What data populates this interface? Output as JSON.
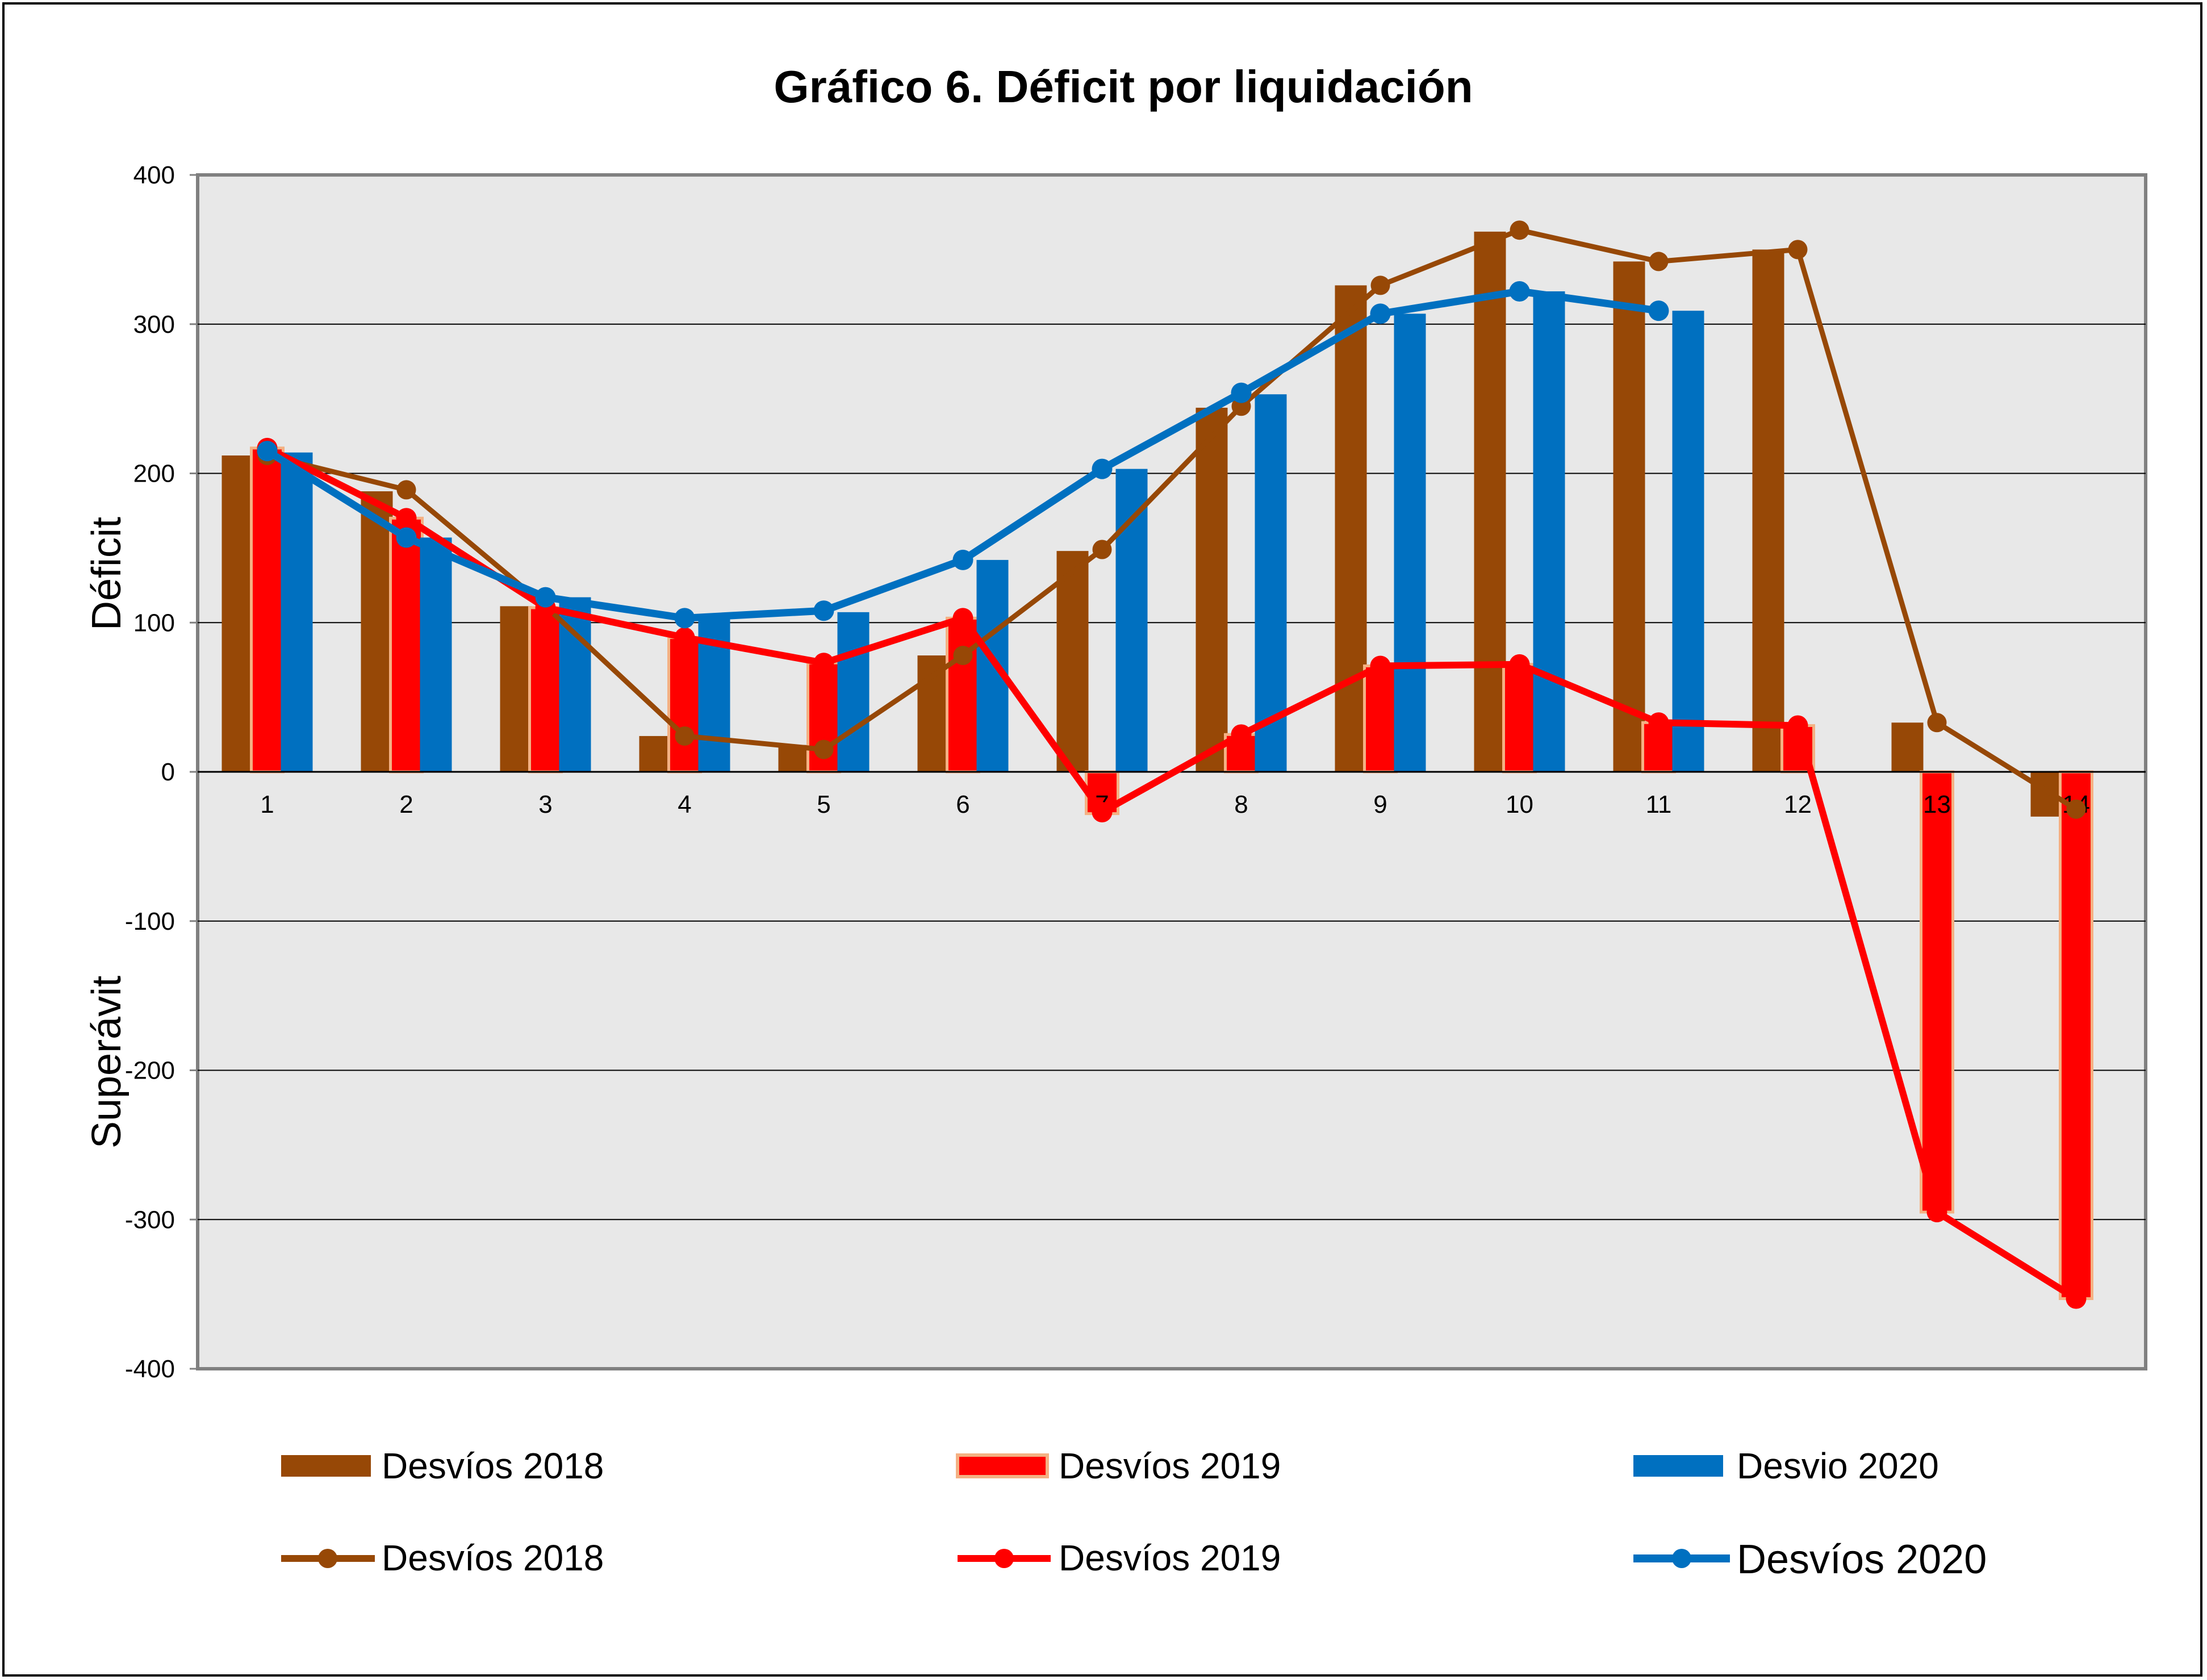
{
  "chart_data": {
    "type": "bar",
    "title": "Gráfico 6. Déficit por liquidación",
    "ylabel_top": "Déficit",
    "ylabel_bottom": "Superávit",
    "ylim": [
      -400,
      400
    ],
    "yticks": [
      "400",
      "300",
      "200",
      "100",
      "0",
      "-100",
      "-200",
      "-300",
      "-400"
    ],
    "ytick_values": [
      400,
      300,
      200,
      100,
      0,
      -100,
      -200,
      -300,
      -400
    ],
    "categories": [
      "1",
      "2",
      "3",
      "4",
      "5",
      "6",
      "7",
      "8",
      "9",
      "10",
      "11",
      "12",
      "13",
      "14"
    ],
    "grid": true,
    "legend_position": "bottom",
    "bar_series": [
      {
        "name": "Desvíos 2018",
        "color": "#974806",
        "values": [
          212,
          188,
          111,
          24,
          18,
          78,
          148,
          244,
          326,
          362,
          342,
          350,
          33,
          -30
        ]
      },
      {
        "name": "Desvíos 2019",
        "color": "#ff0000",
        "edge_color": "#f4b183",
        "values": [
          217,
          170,
          110,
          90,
          73,
          103,
          -28,
          25,
          71,
          72,
          33,
          31,
          -295,
          -353
        ]
      },
      {
        "name": "Desvio 2020",
        "color": "#0070c0",
        "values": [
          214,
          157,
          117,
          103,
          107,
          142,
          203,
          253,
          307,
          322,
          309,
          null,
          null,
          null
        ]
      }
    ],
    "line_series": [
      {
        "name": "Desvíos 2018",
        "color": "#974806",
        "values": [
          212,
          189,
          111,
          24,
          15,
          78,
          149,
          245,
          326,
          363,
          342,
          350,
          33,
          -25
        ]
      },
      {
        "name": "Desvíos 2019",
        "color": "#ff0000",
        "values": [
          217,
          170,
          110,
          90,
          73,
          103,
          -27,
          25,
          71,
          72,
          33,
          31,
          -295,
          -353
        ]
      },
      {
        "name": "Desvíos 2020",
        "color": "#0070c0",
        "values": [
          215,
          157,
          117,
          103,
          108,
          142,
          203,
          254,
          307,
          322,
          309,
          null,
          null,
          null
        ]
      }
    ]
  }
}
